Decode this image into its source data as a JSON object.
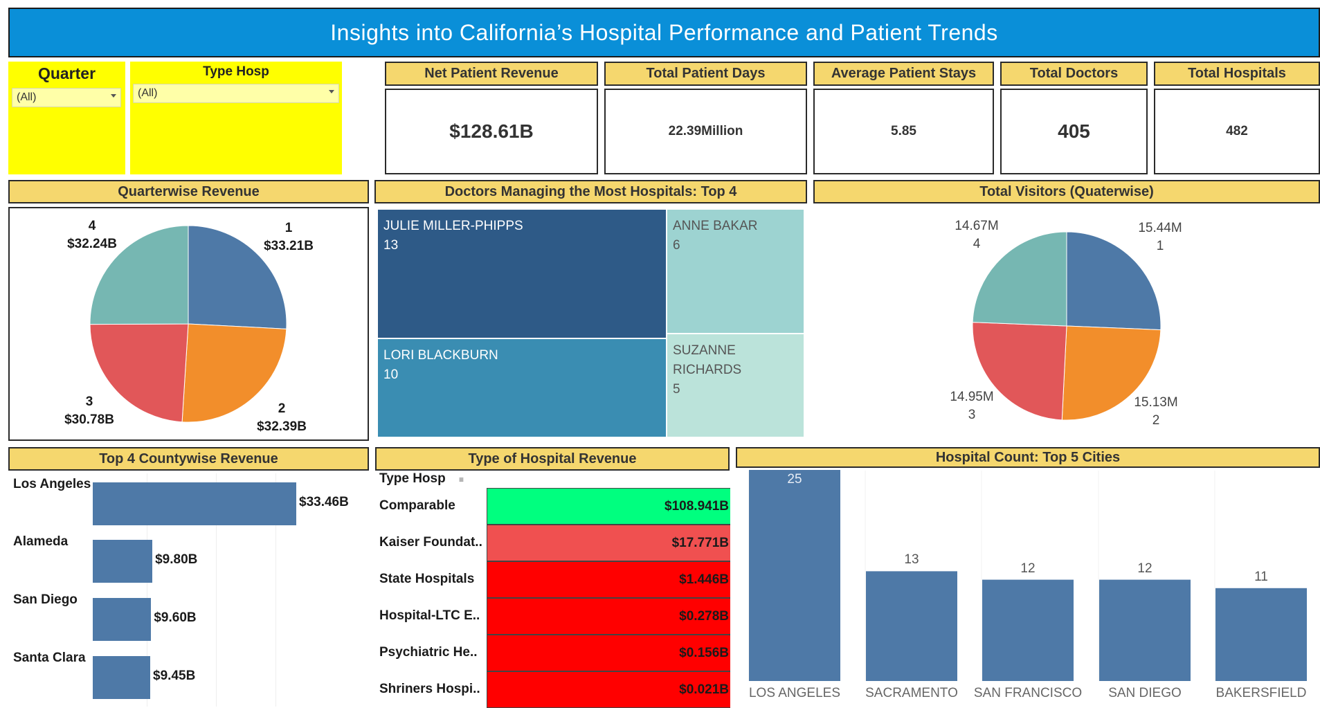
{
  "title": "Insights into California’s Hospital Performance and Patient Trends",
  "filters": {
    "quarter": {
      "label": "Quarter",
      "value": "(All)"
    },
    "type_hosp": {
      "label": "Type Hosp",
      "value": "(All)"
    }
  },
  "kpis": [
    {
      "label": "Net Patient Revenue",
      "value": "$128.61B"
    },
    {
      "label": "Total Patient Days",
      "value": "22.39Million"
    },
    {
      "label": "Average Patient Stays",
      "value": "5.85"
    },
    {
      "label": "Total Doctors",
      "value": "405"
    },
    {
      "label": "Total Hospitals",
      "value": "482"
    }
  ],
  "colors": {
    "q1": "#4e79a7",
    "q2": "#f28e2b",
    "q3": "#e15759",
    "q4": "#76b7b2",
    "header_bg": "#f5d76e",
    "banner_bg": "#0a8fd8",
    "filter_bg": "#ffff00",
    "bar": "#4e79a7",
    "rev_high": "#00ff7f",
    "rev_mid": "#f05050",
    "rev_low": "#ff0000"
  },
  "quarterwise_revenue": {
    "title": "Quarterwise Revenue",
    "slices": [
      {
        "quarter": "1",
        "value_label": "$33.21B",
        "value": 33.21
      },
      {
        "quarter": "2",
        "value_label": "$32.39B",
        "value": 32.39
      },
      {
        "quarter": "3",
        "value_label": "$30.78B",
        "value": 30.78
      },
      {
        "quarter": "4",
        "value_label": "$32.24B",
        "value": 32.24
      }
    ]
  },
  "doctors_treemap": {
    "title": "Doctors Managing the Most Hospitals: Top 4",
    "items": [
      {
        "name": "JULIE MILLER-PHIPPS",
        "count": "13"
      },
      {
        "name": "ANNE BAKAR",
        "count": "6"
      },
      {
        "name": "LORI BLACKBURN",
        "count": "10"
      },
      {
        "name": "SUZANNE RICHARDS",
        "name_line1": "SUZANNE",
        "name_line2": "RICHARDS",
        "count": "5"
      }
    ]
  },
  "total_visitors": {
    "title": "Total Visitors (Quaterwise)",
    "slices": [
      {
        "quarter": "1",
        "value_label": "15.44M",
        "value": 15.44
      },
      {
        "quarter": "2",
        "value_label": "15.13M",
        "value": 15.13
      },
      {
        "quarter": "3",
        "value_label": "14.95M",
        "value": 14.95
      },
      {
        "quarter": "4",
        "value_label": "14.67M",
        "value": 14.67
      }
    ]
  },
  "county_revenue": {
    "title": "Top 4 Countywise Revenue",
    "rows": [
      {
        "county": "Los Angeles",
        "label": "$33.46B",
        "value": 33.46
      },
      {
        "county": "Alameda",
        "label": "$9.80B",
        "value": 9.8
      },
      {
        "county": "San Diego",
        "label": "$9.60B",
        "value": 9.6
      },
      {
        "county": "Santa Clara",
        "label": "$9.45B",
        "value": 9.45
      }
    ]
  },
  "hospital_type_revenue": {
    "title": "Type of Hospital Revenue",
    "column_header": "Type Hosp",
    "rows": [
      {
        "type": "Comparable",
        "value": "$108.941B"
      },
      {
        "type": "Kaiser Foundat..",
        "value": "$17.771B"
      },
      {
        "type": "State Hospitals",
        "value": "$1.446B"
      },
      {
        "type": "Hospital-LTC E..",
        "value": "$0.278B"
      },
      {
        "type": "Psychiatric He..",
        "value": "$0.156B"
      },
      {
        "type": "Shriners Hospi..",
        "value": "$0.021B"
      }
    ]
  },
  "chart_data": {
    "type": "bar",
    "title": "Hospital Count: Top 5 Cities",
    "categories": [
      "LOS ANGELES",
      "SACRAMENTO",
      "SAN FRANCISCO",
      "SAN DIEGO",
      "BAKERSFIELD"
    ],
    "values": [
      25,
      13,
      12,
      12,
      11
    ],
    "ylim": [
      0,
      25
    ],
    "grid": true
  }
}
